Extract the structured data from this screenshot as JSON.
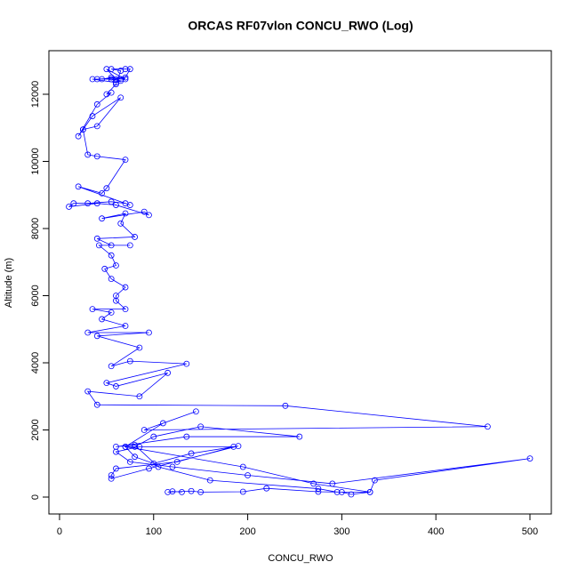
{
  "chart_data": {
    "type": "line",
    "title": "ORCAS RF07vlon CONCU_RWO (Log)",
    "x_label": "CONCU_RWO",
    "y_label": "Altitude (m)",
    "color": "#0000ff",
    "markers": true,
    "xlim": [
      -11.3,
      522.7
    ],
    "ylim": [
      -503,
      13298
    ],
    "xticks": [
      0,
      100,
      200,
      300,
      400,
      500
    ],
    "yticks": [
      0,
      2000,
      4000,
      6000,
      8000,
      10000,
      12000
    ],
    "x": [
      130,
      120,
      115,
      140,
      150,
      195,
      220,
      275,
      300,
      310,
      330,
      335,
      500,
      290,
      200,
      120,
      75,
      60,
      85,
      185,
      125,
      60,
      55,
      55,
      95,
      190,
      140,
      100,
      80,
      70,
      195,
      270,
      330,
      295,
      275,
      160,
      105,
      80,
      60,
      135,
      255,
      150,
      100,
      80,
      70,
      110,
      145,
      90,
      455,
      240,
      40,
      30,
      85,
      115,
      60,
      50,
      135,
      75,
      55,
      85,
      40,
      95,
      30,
      70,
      45,
      55,
      35,
      70,
      60,
      60,
      70,
      55,
      48,
      60,
      55,
      42,
      75,
      55,
      40,
      80,
      65,
      70,
      45,
      90,
      95,
      60,
      40,
      10,
      15,
      30,
      55,
      70,
      75,
      20,
      45,
      50,
      70,
      40,
      30,
      25,
      40,
      65,
      35,
      25,
      20,
      40,
      55,
      50,
      60,
      65,
      55,
      70,
      75,
      70,
      40,
      55,
      65,
      60,
      35,
      70,
      50,
      60,
      45,
      55,
      65
    ],
    "values": [
      150,
      170,
      150,
      180,
      150,
      160,
      260,
      160,
      150,
      80,
      150,
      500,
      1150,
      400,
      650,
      900,
      1050,
      1350,
      1500,
      1500,
      1050,
      850,
      650,
      550,
      850,
      1520,
      1300,
      1000,
      1200,
      1500,
      900,
      400,
      150,
      150,
      250,
      500,
      900,
      1550,
      1500,
      1800,
      1800,
      2100,
      1800,
      1500,
      1500,
      2200,
      2550,
      2000,
      2100,
      2720,
      2750,
      3150,
      3000,
      3700,
      3300,
      3400,
      3970,
      4050,
      3900,
      4450,
      4800,
      4900,
      4900,
      5100,
      5300,
      5500,
      5600,
      5600,
      5850,
      6000,
      6250,
      6500,
      6800,
      6900,
      7200,
      7500,
      7500,
      7500,
      7700,
      7750,
      8150,
      8450,
      8300,
      8500,
      8400,
      8700,
      8750,
      8650,
      8750,
      8750,
      8800,
      8750,
      8700,
      9250,
      9050,
      9200,
      10050,
      10150,
      10200,
      10950,
      11050,
      11900,
      11350,
      10950,
      10750,
      11700,
      12050,
      12000,
      12300,
      12700,
      12750,
      12750,
      12750,
      12500,
      12450,
      12450,
      12400,
      12350,
      12450,
      12450,
      12750,
      12450,
      12450,
      12500,
      12450
    ]
  }
}
